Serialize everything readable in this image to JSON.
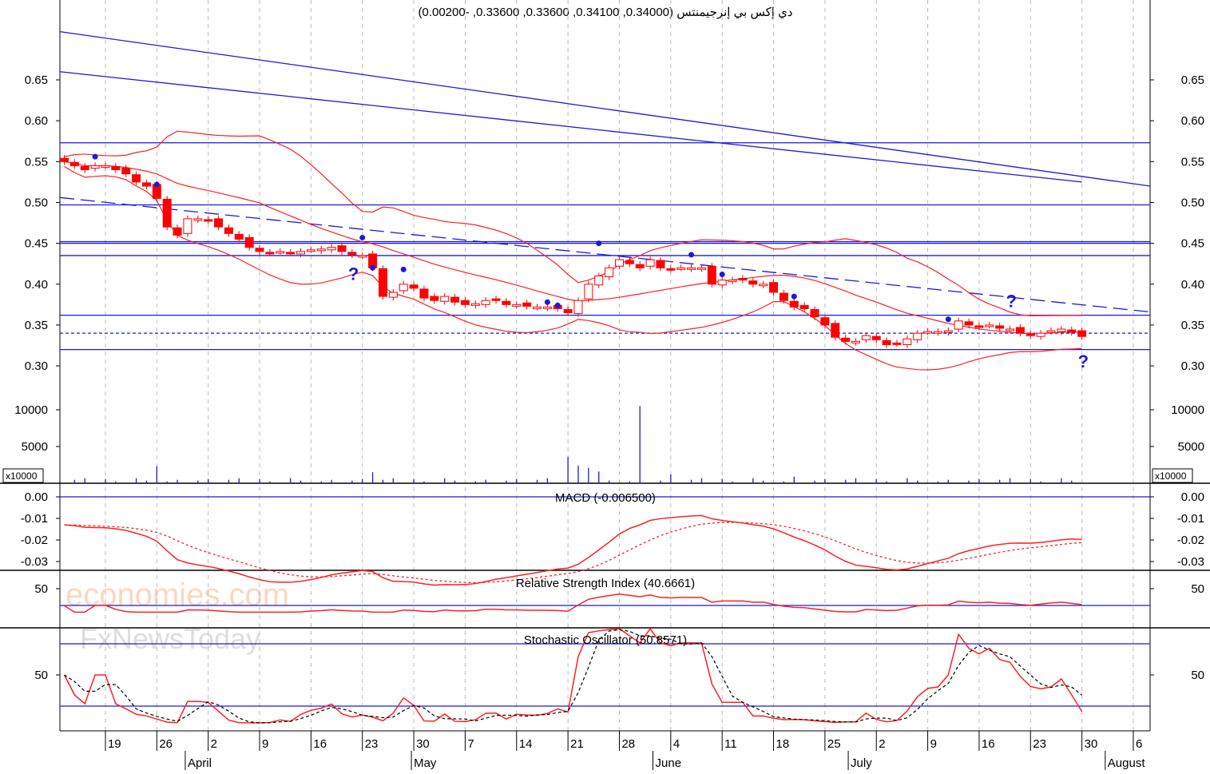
{
  "title": "دي إكس بي إنرجيمنتس (0.34000, 0.34100, 0.33600, 0.33600, -0.00200)",
  "watermark": {
    "line1": "economies.com",
    "line2": "FxNewsToday"
  },
  "colors": {
    "bear": "#ff0000",
    "bull": "#ff0000",
    "blue": "#1a1adb",
    "band": "#ff2020"
  },
  "chart_data": {
    "type": "candlestick",
    "price_axis": {
      "ticks": [
        "0.65",
        "0.60",
        "0.55",
        "0.50",
        "0.45",
        "0.40",
        "0.35",
        "0.30"
      ],
      "ylim": [
        0.3,
        0.65
      ]
    },
    "volume_axis": {
      "ticks": [
        "10000",
        "5000"
      ],
      "multiplier_label": "x10000"
    },
    "macd": {
      "label": "MACD (-0.006500)",
      "ticks": [
        "0.00",
        "-0.01",
        "-0.02",
        "-0.03"
      ]
    },
    "rsi": {
      "label": "Relative Strength Index (40.6661)",
      "ticks": [
        "50"
      ],
      "level": 30
    },
    "stochastic": {
      "label": "Stochastic Oscillator (50.8571)",
      "ticks": [
        "50"
      ],
      "levels": [
        80,
        20
      ]
    },
    "x_ticks": [
      {
        "i": 4,
        "label": "19"
      },
      {
        "i": 9,
        "label": "26"
      },
      {
        "i": 14,
        "label": "2"
      },
      {
        "i": 19,
        "label": "9"
      },
      {
        "i": 24,
        "label": "16"
      },
      {
        "i": 29,
        "label": "23"
      },
      {
        "i": 34,
        "label": "30"
      },
      {
        "i": 39,
        "label": "7"
      },
      {
        "i": 44,
        "label": "14"
      },
      {
        "i": 49,
        "label": "21"
      },
      {
        "i": 54,
        "label": "28"
      },
      {
        "i": 59,
        "label": "4"
      },
      {
        "i": 64,
        "label": "11"
      },
      {
        "i": 69,
        "label": "18"
      },
      {
        "i": 74,
        "label": "25"
      },
      {
        "i": 79,
        "label": "2"
      },
      {
        "i": 84,
        "label": "9"
      },
      {
        "i": 89,
        "label": "16"
      },
      {
        "i": 94,
        "label": "23"
      },
      {
        "i": 99,
        "label": "30"
      },
      {
        "i": 104,
        "label": "6"
      }
    ],
    "months": [
      {
        "i": 12,
        "label": "April"
      },
      {
        "i": 34,
        "label": "May"
      },
      {
        "i": 57.5,
        "label": "June"
      },
      {
        "i": 76.5,
        "label": "July"
      },
      {
        "i": 101.5,
        "label": "August"
      }
    ],
    "closes": [
      0.55,
      0.545,
      0.54,
      0.545,
      0.545,
      0.54,
      0.535,
      0.525,
      0.52,
      0.505,
      0.47,
      0.46,
      0.48,
      0.48,
      0.478,
      0.47,
      0.462,
      0.455,
      0.445,
      0.44,
      0.438,
      0.44,
      0.438,
      0.44,
      0.442,
      0.443,
      0.445,
      0.44,
      0.436,
      0.435,
      0.42,
      0.385,
      0.39,
      0.4,
      0.395,
      0.383,
      0.38,
      0.385,
      0.378,
      0.375,
      0.376,
      0.38,
      0.38,
      0.375,
      0.375,
      0.373,
      0.372,
      0.372,
      0.37,
      0.365,
      0.38,
      0.4,
      0.41,
      0.42,
      0.43,
      0.425,
      0.42,
      0.43,
      0.42,
      0.418,
      0.42,
      0.42,
      0.42,
      0.4,
      0.405,
      0.405,
      0.405,
      0.4,
      0.4,
      0.39,
      0.38,
      0.372,
      0.37,
      0.36,
      0.35,
      0.335,
      0.33,
      0.33,
      0.337,
      0.332,
      0.326,
      0.327,
      0.333,
      0.34,
      0.342,
      0.342,
      0.343,
      0.355,
      0.35,
      0.348,
      0.35,
      0.346,
      0.345,
      0.34,
      0.337,
      0.34,
      0.343,
      0.345,
      0.341,
      0.336
    ],
    "volume_spikes": [
      {
        "i": 9,
        "v": 2300
      },
      {
        "i": 30,
        "v": 1500
      },
      {
        "i": 49,
        "v": 3600
      },
      {
        "i": 50,
        "v": 2400
      },
      {
        "i": 51,
        "v": 2100
      },
      {
        "i": 52,
        "v": 1600
      },
      {
        "i": 56,
        "v": 10500
      },
      {
        "i": 59,
        "v": 1200
      },
      {
        "i": 71,
        "v": 900
      }
    ],
    "horizontal_levels": [
      0.573,
      0.497,
      0.452,
      0.45,
      0.435,
      0.362,
      0.32
    ],
    "dotted_level": 0.34,
    "trendlines": [
      {
        "from_i": -0.5,
        "from": 0.709,
        "to_i": 106,
        "to": 0.52,
        "style": "solid"
      },
      {
        "from_i": -0.5,
        "from": 0.66,
        "to_i": 99,
        "to": 0.525,
        "style": "solid"
      },
      {
        "from_i": -0.5,
        "from": 0.506,
        "to_i": 106,
        "to": 0.366,
        "style": "dashed"
      }
    ],
    "signal_dots": [
      {
        "i": 3,
        "p": 0.556
      },
      {
        "i": 9,
        "p": 0.522
      },
      {
        "i": 29,
        "p": 0.457
      },
      {
        "i": 30,
        "p": 0.42
      },
      {
        "i": 33,
        "p": 0.418
      },
      {
        "i": 47,
        "p": 0.378
      },
      {
        "i": 48,
        "p": 0.374
      },
      {
        "i": 52,
        "p": 0.45
      },
      {
        "i": 61,
        "p": 0.436
      },
      {
        "i": 64,
        "p": 0.412
      },
      {
        "i": 71,
        "p": 0.385
      },
      {
        "i": 86,
        "p": 0.357
      }
    ],
    "question_marks": [
      {
        "i": 28,
        "p": 0.405
      },
      {
        "i": 92,
        "p": 0.372
      },
      {
        "i": 99,
        "p": 0.298
      }
    ]
  }
}
